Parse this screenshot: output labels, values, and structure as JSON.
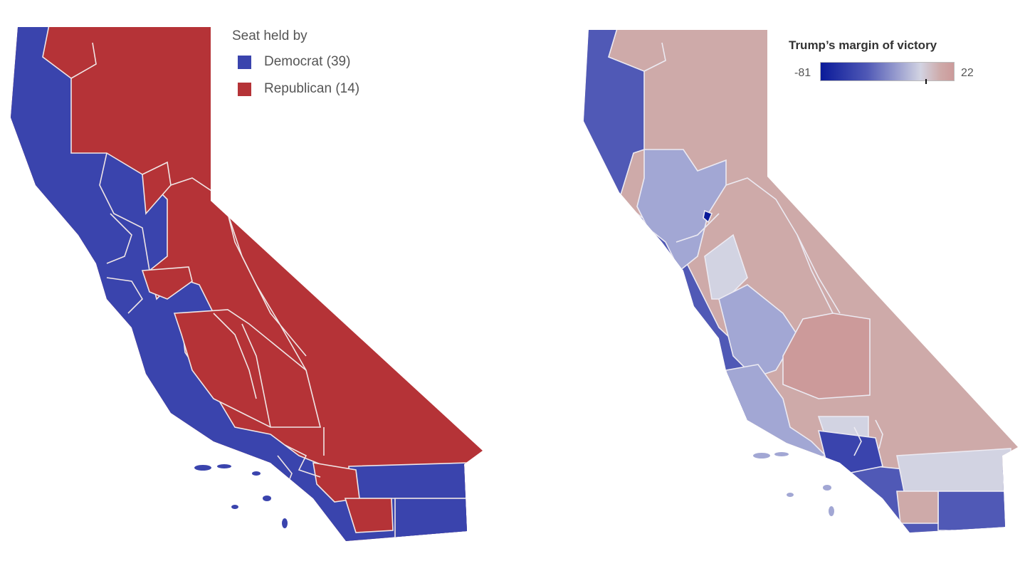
{
  "maps": {
    "left": {
      "legend_title": "Seat held by",
      "legend": [
        {
          "label": "Democrat (39)",
          "color": "#3a44ad"
        },
        {
          "label": "Republican (14)",
          "color": "#b53337"
        }
      ]
    },
    "right": {
      "colorbar_title": "Trump’s margin of victory",
      "colorbar_min": "-81",
      "colorbar_max": "22",
      "colorbar_marker_value": 0,
      "colors": {
        "dem_strong": "#0a1a99",
        "dem_mid": "#5059b6",
        "dem_light": "#a2a7d4",
        "neutral": "#d2d3e2",
        "rep_light": "#ceaaa9",
        "rep_mid": "#cc9a9a"
      }
    }
  }
}
